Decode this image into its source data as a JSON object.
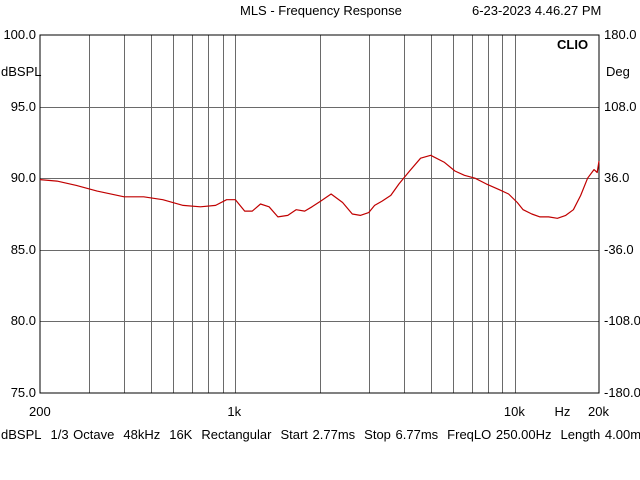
{
  "header": {
    "title": "MLS - Frequency Response",
    "timestamp": "6-23-2023 4.46.27 PM",
    "brand": "CLIO"
  },
  "footer": {
    "items": [
      "dBSPL",
      "1/3 Octave",
      "48kHz",
      "16K",
      "Rectangular",
      "Start 2.77ms",
      "Stop 6.77ms",
      "FreqLO 250.00Hz",
      "Length 4.00ms"
    ]
  },
  "chart_data": {
    "type": "line",
    "title": "MLS - Frequency Response",
    "xlabel": "Hz",
    "ylabel": "dBSPL",
    "y2label": "Deg",
    "xscale": "log",
    "xlim": [
      200,
      20000
    ],
    "ylim": [
      75,
      100
    ],
    "y2lim": [
      -180,
      180
    ],
    "x_tick_labels": [
      "200",
      "1k",
      "10k",
      "Hz",
      "20k"
    ],
    "y_tick_labels": [
      "100.0",
      "95.0",
      "90.0",
      "85.0",
      "80.0",
      "75.0"
    ],
    "y2_tick_labels": [
      "180.0",
      "108.0",
      "36.0",
      "-36.0",
      "-108.0",
      "-180.0"
    ],
    "grid": true,
    "line_color": "#c00000",
    "series": [
      {
        "x": [
          200,
          230,
          270,
          320,
          400,
          470,
          550,
          650,
          750,
          850,
          930,
          1000,
          1080,
          1150,
          1230,
          1320,
          1420,
          1540,
          1650,
          1770,
          1880,
          2020,
          2200,
          2420,
          2620,
          2800,
          3000,
          3150,
          3350,
          3600,
          3850,
          4200,
          4600,
          5000,
          5600,
          6100,
          6600,
          7200,
          7900,
          8800,
          9500,
          10200,
          10700,
          11500,
          12300,
          13200,
          14200,
          15200,
          16200,
          17200,
          18200,
          19200,
          19700,
          20000
        ],
        "y": [
          89.9,
          89.8,
          89.5,
          89.1,
          88.7,
          88.7,
          88.5,
          88.1,
          88.0,
          88.1,
          88.5,
          88.5,
          87.7,
          87.7,
          88.2,
          88.0,
          87.3,
          87.4,
          87.8,
          87.7,
          88.0,
          88.4,
          88.9,
          88.3,
          87.5,
          87.4,
          87.6,
          88.1,
          88.4,
          88.8,
          89.6,
          90.5,
          91.4,
          91.6,
          91.1,
          90.5,
          90.2,
          90.0,
          89.6,
          89.2,
          88.9,
          88.3,
          87.8,
          87.5,
          87.3,
          87.3,
          87.2,
          87.4,
          87.8,
          88.8,
          90.0,
          90.6,
          90.4,
          91.2
        ]
      }
    ]
  }
}
